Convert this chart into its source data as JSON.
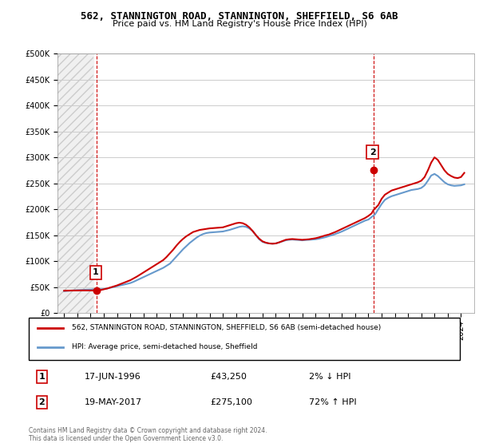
{
  "title1": "562, STANNINGTON ROAD, STANNINGTON, SHEFFIELD, S6 6AB",
  "title2": "Price paid vs. HM Land Registry's House Price Index (HPI)",
  "legend_line1": "562, STANNINGTON ROAD, STANNINGTON, SHEFFIELD, S6 6AB (semi-detached house)",
  "legend_line2": "HPI: Average price, semi-detached house, Sheffield",
  "annotation1": {
    "label": "1",
    "date_str": "17-JUN-1996",
    "price_str": "£43,250",
    "pct_str": "2% ↓ HPI",
    "year": 1996.46,
    "price": 43250
  },
  "annotation2": {
    "label": "2",
    "date_str": "19-MAY-2017",
    "price_str": "£275,100",
    "pct_str": "72% ↑ HPI",
    "year": 2017.38,
    "price": 275100
  },
  "copyright": "Contains HM Land Registry data © Crown copyright and database right 2024.\nThis data is licensed under the Open Government Licence v3.0.",
  "red_color": "#cc0000",
  "blue_color": "#6699cc",
  "bg_hatch_color": "#e8e8e8",
  "ylim": [
    0,
    500000
  ],
  "xlim": [
    1993.5,
    2025
  ],
  "yticks": [
    0,
    50000,
    100000,
    150000,
    200000,
    250000,
    300000,
    350000,
    400000,
    450000,
    500000
  ],
  "xticks": [
    1994,
    1995,
    1996,
    1997,
    1998,
    1999,
    2000,
    2001,
    2002,
    2003,
    2004,
    2005,
    2006,
    2007,
    2008,
    2009,
    2010,
    2011,
    2012,
    2013,
    2014,
    2015,
    2016,
    2017,
    2018,
    2019,
    2020,
    2021,
    2022,
    2023,
    2024
  ],
  "hpi_years": [
    1994,
    1994.25,
    1994.5,
    1994.75,
    1995,
    1995.25,
    1995.5,
    1995.75,
    1996,
    1996.25,
    1996.5,
    1996.75,
    1997,
    1997.25,
    1997.5,
    1997.75,
    1998,
    1998.25,
    1998.5,
    1998.75,
    1999,
    1999.25,
    1999.5,
    1999.75,
    2000,
    2000.25,
    2000.5,
    2000.75,
    2001,
    2001.25,
    2001.5,
    2001.75,
    2002,
    2002.25,
    2002.5,
    2002.75,
    2003,
    2003.25,
    2003.5,
    2003.75,
    2004,
    2004.25,
    2004.5,
    2004.75,
    2005,
    2005.25,
    2005.5,
    2005.75,
    2006,
    2006.25,
    2006.5,
    2006.75,
    2007,
    2007.25,
    2007.5,
    2007.75,
    2008,
    2008.25,
    2008.5,
    2008.75,
    2009,
    2009.25,
    2009.5,
    2009.75,
    2010,
    2010.25,
    2010.5,
    2010.75,
    2011,
    2011.25,
    2011.5,
    2011.75,
    2012,
    2012.25,
    2012.5,
    2012.75,
    2013,
    2013.25,
    2013.5,
    2013.75,
    2014,
    2014.25,
    2014.5,
    2014.75,
    2015,
    2015.25,
    2015.5,
    2015.75,
    2016,
    2016.25,
    2016.5,
    2016.75,
    2017,
    2017.25,
    2017.5,
    2017.75,
    2018,
    2018.25,
    2018.5,
    2018.75,
    2019,
    2019.25,
    2019.5,
    2019.75,
    2020,
    2020.25,
    2020.5,
    2020.75,
    2021,
    2021.25,
    2021.5,
    2021.75,
    2022,
    2022.25,
    2022.5,
    2022.75,
    2023,
    2023.25,
    2023.5,
    2023.75,
    2024,
    2024.25
  ],
  "hpi_values": [
    42000,
    42500,
    43000,
    43500,
    44000,
    44200,
    44500,
    44800,
    45000,
    45200,
    45400,
    45700,
    46000,
    47000,
    48500,
    50000,
    51500,
    53000,
    54500,
    56000,
    57500,
    60000,
    63000,
    66000,
    69000,
    72000,
    75000,
    78000,
    81000,
    84000,
    87000,
    91000,
    95000,
    102000,
    109000,
    116000,
    123000,
    129000,
    135000,
    140000,
    145000,
    149000,
    152000,
    154000,
    155000,
    155500,
    156000,
    156500,
    157000,
    158500,
    160000,
    162000,
    164000,
    166000,
    167000,
    166000,
    163000,
    158000,
    150000,
    142000,
    137000,
    135000,
    134000,
    133500,
    134000,
    136000,
    138000,
    140000,
    141000,
    141500,
    141000,
    140500,
    140000,
    140500,
    141000,
    141500,
    142000,
    143000,
    144500,
    146000,
    148000,
    150000,
    152000,
    154500,
    157000,
    160000,
    163000,
    166000,
    169000,
    172000,
    175000,
    178000,
    180000,
    185000,
    190000,
    200000,
    210000,
    218000,
    222000,
    225000,
    227000,
    229000,
    231000,
    233000,
    235000,
    237000,
    238000,
    239000,
    241000,
    246000,
    255000,
    265000,
    268000,
    264000,
    258000,
    252000,
    248000,
    246000,
    245000,
    245500,
    246000,
    248000
  ],
  "red_years": [
    1994,
    1994.25,
    1994.5,
    1994.75,
    1995,
    1995.25,
    1995.5,
    1995.75,
    1996,
    1996.25,
    1996.46,
    1996.75,
    1997,
    1997.25,
    1997.5,
    1997.75,
    1998,
    1998.25,
    1998.5,
    1998.75,
    1999,
    1999.25,
    1999.5,
    1999.75,
    2000,
    2000.25,
    2000.5,
    2000.75,
    2001,
    2001.25,
    2001.5,
    2001.75,
    2002,
    2002.25,
    2002.5,
    2002.75,
    2003,
    2003.25,
    2003.5,
    2003.75,
    2004,
    2004.25,
    2004.5,
    2004.75,
    2005,
    2005.25,
    2005.5,
    2005.75,
    2006,
    2006.25,
    2006.5,
    2006.75,
    2007,
    2007.25,
    2007.5,
    2007.75,
    2008,
    2008.25,
    2008.5,
    2008.75,
    2009,
    2009.25,
    2009.5,
    2009.75,
    2010,
    2010.25,
    2010.5,
    2010.75,
    2011,
    2011.25,
    2011.5,
    2011.75,
    2012,
    2012.25,
    2012.5,
    2012.75,
    2013,
    2013.25,
    2013.5,
    2013.75,
    2014,
    2014.25,
    2014.5,
    2014.75,
    2015,
    2015.25,
    2015.5,
    2015.75,
    2016,
    2016.25,
    2016.5,
    2016.75,
    2017,
    2017.25,
    2017.38,
    2017.75,
    2018,
    2018.25,
    2018.5,
    2018.75,
    2019,
    2019.25,
    2019.5,
    2019.75,
    2020,
    2020.25,
    2020.5,
    2020.75,
    2021,
    2021.25,
    2021.5,
    2021.75,
    2022,
    2022.25,
    2022.5,
    2022.75,
    2023,
    2023.25,
    2023.5,
    2023.75,
    2024,
    2024.25
  ],
  "red_values": [
    42800,
    43000,
    43100,
    43200,
    43250,
    43300,
    43350,
    43300,
    43250,
    43260,
    43250,
    44000,
    45500,
    47000,
    49000,
    51000,
    53000,
    55500,
    58000,
    60500,
    63000,
    66500,
    70000,
    74000,
    78000,
    82000,
    86000,
    90000,
    94000,
    98000,
    102000,
    108000,
    115000,
    122000,
    130000,
    137000,
    143000,
    148000,
    152000,
    156000,
    158000,
    160000,
    161000,
    162000,
    163000,
    163500,
    164000,
    164500,
    165000,
    167000,
    169000,
    171000,
    173000,
    174000,
    173000,
    170000,
    165000,
    158000,
    150000,
    143000,
    138000,
    135500,
    134000,
    133500,
    134000,
    136000,
    138500,
    141000,
    142000,
    142500,
    142000,
    141500,
    141000,
    141500,
    142000,
    143000,
    144000,
    145500,
    147500,
    149500,
    151000,
    153500,
    156000,
    159000,
    162000,
    165000,
    168000,
    171000,
    174000,
    177000,
    180000,
    183000,
    187000,
    192000,
    198000,
    208000,
    220000,
    228000,
    232000,
    236000,
    238000,
    240000,
    242000,
    244000,
    246000,
    248000,
    250000,
    252000,
    255000,
    262000,
    275000,
    290000,
    300000,
    295000,
    285000,
    275000,
    268000,
    264000,
    261000,
    260000,
    262000,
    270000
  ]
}
